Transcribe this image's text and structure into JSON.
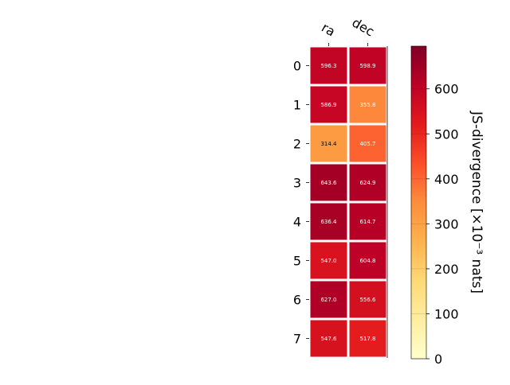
{
  "chart_data": {
    "type": "heatmap",
    "title": "",
    "x_categories": [
      "ra",
      "dec"
    ],
    "y_categories": [
      "0",
      "1",
      "2",
      "3",
      "4",
      "5",
      "6",
      "7"
    ],
    "values": [
      [
        596.3,
        598.9
      ],
      [
        586.9,
        355.8
      ],
      [
        314.4,
        405.7
      ],
      [
        643.6,
        624.9
      ],
      [
        636.4,
        614.7
      ],
      [
        547.0,
        604.8
      ],
      [
        627.0,
        556.6
      ],
      [
        547.6,
        517.8
      ]
    ],
    "value_labels": [
      [
        "596.3",
        "598.9"
      ],
      [
        "586.9",
        "355.8"
      ],
      [
        "314.4",
        "405.7"
      ],
      [
        "643.6",
        "624.9"
      ],
      [
        "636.4",
        "614.7"
      ],
      [
        "547.0",
        "604.8"
      ],
      [
        "627.0",
        "556.6"
      ],
      [
        "547.6",
        "517.8"
      ]
    ],
    "colorbar": {
      "label": "JS-divergence [×10⁻³ nats]",
      "range": [
        0,
        695
      ],
      "ticks": [
        0,
        100,
        200,
        300,
        400,
        500,
        600
      ],
      "colormap": "YlOrRd",
      "colors": [
        "#ffffcc",
        "#ffeda0",
        "#fed976",
        "#feb24c",
        "#fd8d3c",
        "#fc4e2a",
        "#e31a1c",
        "#bd0026",
        "#800026"
      ]
    }
  }
}
